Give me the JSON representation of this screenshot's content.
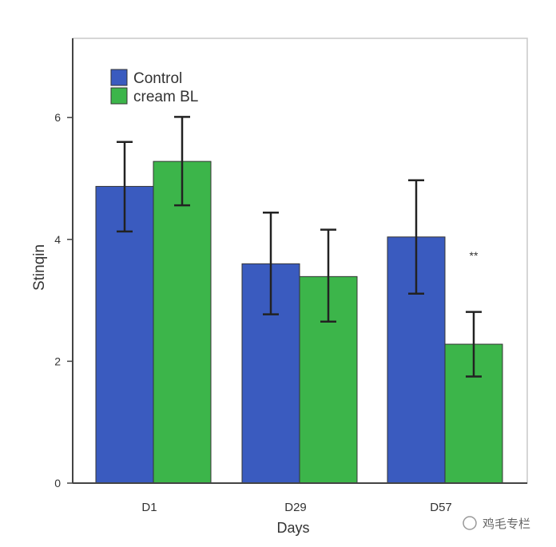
{
  "chart_data": {
    "type": "bar",
    "title": "",
    "xlabel": "Days",
    "ylabel": "Stinqin",
    "categories": [
      "D1",
      "D29",
      "D57"
    ],
    "ylim": [
      0,
      7.3
    ],
    "yticks": [
      0,
      2,
      4,
      6
    ],
    "grid": false,
    "legend_position": "top-left",
    "series": [
      {
        "name": "Control",
        "color": "#3a5bbf",
        "values": [
          4.87,
          3.6,
          4.04
        ],
        "err_low": [
          4.13,
          2.77,
          3.11
        ],
        "err_high": [
          5.6,
          4.44,
          4.97
        ]
      },
      {
        "name": "cream BL",
        "color": "#3cb54a",
        "values": [
          5.28,
          3.39,
          2.28
        ],
        "err_low": [
          4.56,
          2.65,
          1.75
        ],
        "err_high": [
          6.01,
          4.16,
          2.81
        ]
      }
    ],
    "annotations": [
      {
        "category": "D57",
        "text": "**"
      }
    ]
  },
  "watermark": {
    "text": "鸡毛专栏"
  }
}
